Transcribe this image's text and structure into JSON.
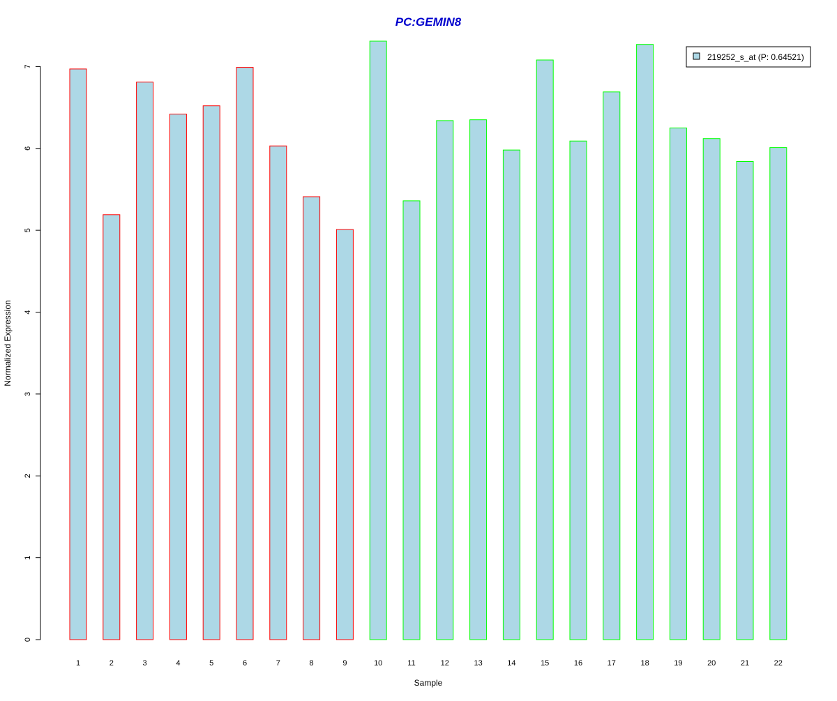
{
  "chart_data": {
    "type": "bar",
    "title": "PC:GEMIN8",
    "xlabel": "Sample",
    "ylabel": "Normalized Expression",
    "categories": [
      "1",
      "2",
      "3",
      "4",
      "5",
      "6",
      "7",
      "8",
      "9",
      "10",
      "11",
      "12",
      "13",
      "14",
      "15",
      "16",
      "17",
      "18",
      "19",
      "20",
      "21",
      "22"
    ],
    "values": [
      6.97,
      5.19,
      6.81,
      6.42,
      6.52,
      6.99,
      6.03,
      5.41,
      5.01,
      7.31,
      5.36,
      6.34,
      6.35,
      5.98,
      7.08,
      6.09,
      6.69,
      7.27,
      6.25,
      6.12,
      5.84,
      6.01
    ],
    "groups": [
      "red",
      "red",
      "red",
      "red",
      "red",
      "red",
      "red",
      "red",
      "red",
      "green",
      "green",
      "green",
      "green",
      "green",
      "green",
      "green",
      "green",
      "green",
      "green",
      "green",
      "green",
      "green"
    ],
    "ylim": [
      0,
      7.31
    ],
    "yticks": [
      0,
      1,
      2,
      3,
      4,
      5,
      6,
      7
    ],
    "grid": false,
    "legend": {
      "position": "top-right",
      "entries": [
        "219252_s_at (P: 0.64521)"
      ]
    },
    "colors": {
      "bar_fill": "#add8e6",
      "group_red": "#ff0000",
      "group_green": "#00ff00",
      "title": "#0000cd",
      "axis": "#000000"
    }
  }
}
